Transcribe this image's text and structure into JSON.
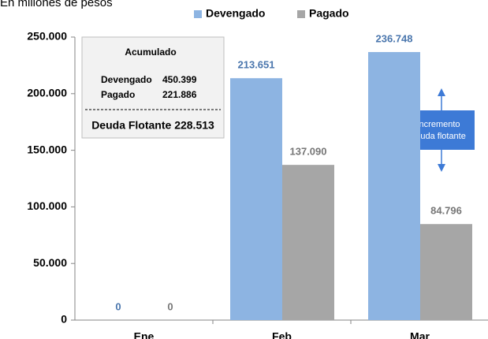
{
  "chart_data": {
    "type": "bar",
    "subtitle": "En millones de pesos",
    "categories": [
      "Ene",
      "Feb",
      "Mar"
    ],
    "series": [
      {
        "name": "Devengado",
        "color": "#8db4e2",
        "label_color": "#4a76ad",
        "values": [
          0,
          213651,
          236748
        ],
        "value_labels": [
          "0",
          "213.651",
          "236.748"
        ]
      },
      {
        "name": "Pagado",
        "color": "#a6a6a6",
        "label_color": "#767676",
        "values": [
          0,
          137090,
          84796
        ],
        "value_labels": [
          "0",
          "137.090",
          "84.796"
        ]
      }
    ],
    "ylim": [
      0,
      250000
    ],
    "yticks": [
      {
        "value": 0,
        "label": "0"
      },
      {
        "value": 50000,
        "label": "50.000"
      },
      {
        "value": 100000,
        "label": "100.000"
      },
      {
        "value": 150000,
        "label": "150.000"
      },
      {
        "value": 200000,
        "label": "200.000"
      },
      {
        "value": 250000,
        "label": "250.000"
      }
    ],
    "grid": false,
    "legend": "top",
    "summary": {
      "title": "Acumulado",
      "rows": [
        {
          "label": "Devengado",
          "value": "450.399"
        },
        {
          "label": "Pagado",
          "value": "221.886"
        }
      ],
      "total": "Deuda Flotante 228.513"
    },
    "callout": {
      "lines": [
        "Incremento",
        "deuda flotante"
      ],
      "color": "#3d7ad6"
    }
  }
}
